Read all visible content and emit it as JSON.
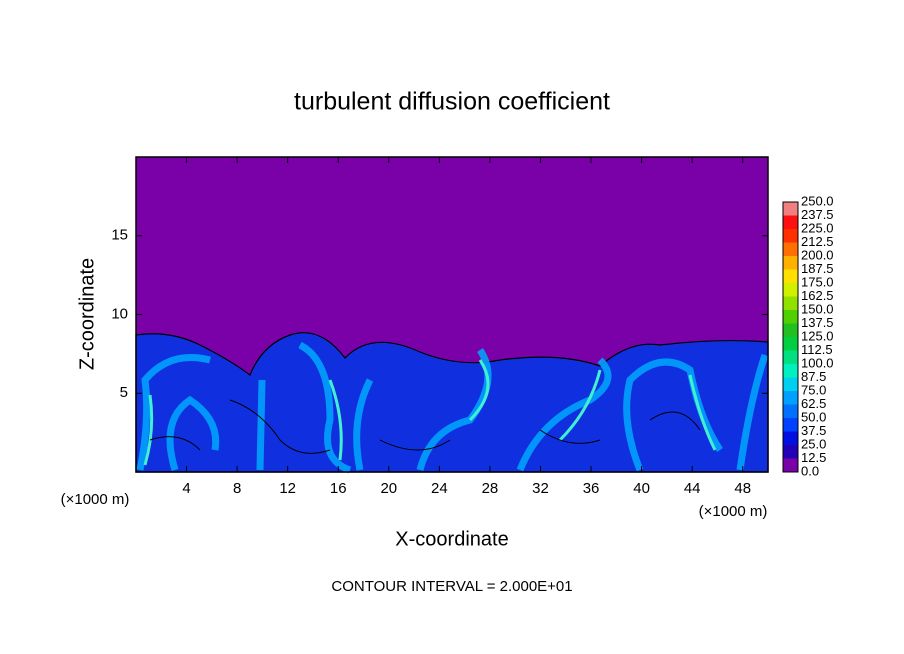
{
  "chart_data": {
    "type": "contour",
    "title": "turbulent diffusion coefficient",
    "xlabel": "X-coordinate",
    "ylabel": "Z-coordinate",
    "x_unit": "(×1000 m)",
    "x_unit_right": "(×1000 m)",
    "footer": "CONTOUR INTERVAL = 2.000E+01",
    "xlim": [
      0,
      50
    ],
    "xticks": [
      4,
      8,
      12,
      16,
      20,
      24,
      28,
      32,
      36,
      40,
      44,
      48
    ],
    "ylim": [
      0,
      20
    ],
    "yticks": [
      5,
      10,
      15
    ],
    "colorbar": {
      "levels": [
        {
          "value": 0,
          "label": "0.0"
        },
        {
          "value": 12.5,
          "label": "12.5"
        },
        {
          "value": 25,
          "label": "25.0"
        },
        {
          "value": 37.5,
          "label": "37.5"
        },
        {
          "value": 50,
          "label": "50.0"
        },
        {
          "value": 62.5,
          "label": "62.5"
        },
        {
          "value": 75,
          "label": "75.0"
        },
        {
          "value": 87.5,
          "label": "87.5"
        },
        {
          "value": 100,
          "label": "100.0"
        },
        {
          "value": 112.5,
          "label": "112.5"
        },
        {
          "value": 125,
          "label": "125.0"
        },
        {
          "value": 137.5,
          "label": "137.5"
        },
        {
          "value": 150,
          "label": "150.0"
        },
        {
          "value": 162.5,
          "label": "162.5"
        },
        {
          "value": 175,
          "label": "175.0"
        },
        {
          "value": 187.5,
          "label": "187.5"
        },
        {
          "value": 200,
          "label": "200.0"
        },
        {
          "value": 212.5,
          "label": "212.5"
        },
        {
          "value": 225,
          "label": "225.0"
        },
        {
          "value": 237.5,
          "label": "237.5"
        },
        {
          "value": 250,
          "label": "250.0"
        }
      ],
      "colors": [
        "#7a00a8",
        "#2200b8",
        "#0010e0",
        "#0040ff",
        "#0070ff",
        "#00a0ff",
        "#00d0f0",
        "#00f0c0",
        "#00e080",
        "#00d040",
        "#20c020",
        "#50d000",
        "#90e000",
        "#d0f000",
        "#ffe000",
        "#ffb000",
        "#ff7000",
        "#ff3000",
        "#ff1010",
        "#f08080"
      ]
    }
  }
}
